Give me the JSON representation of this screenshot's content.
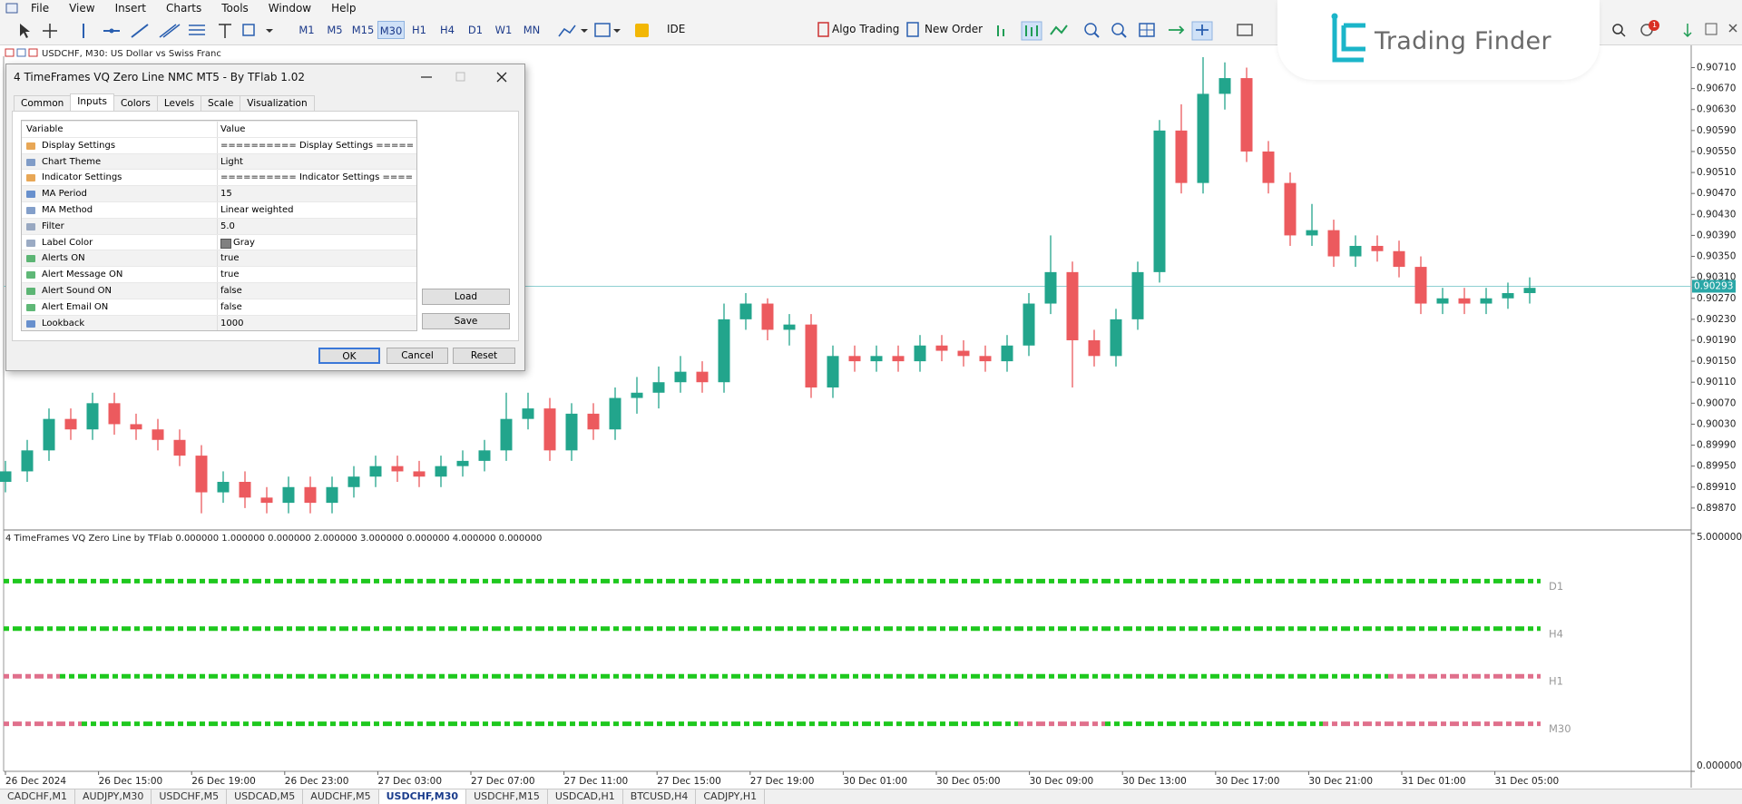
{
  "menu": [
    "File",
    "View",
    "Insert",
    "Charts",
    "Tools",
    "Window",
    "Help"
  ],
  "toolbar": {
    "timeframes": [
      "M1",
      "M5",
      "M15",
      "M30",
      "H1",
      "H4",
      "D1",
      "W1",
      "MN"
    ],
    "ide": "IDE",
    "algo": "Algo Trading",
    "order": "New Order",
    "notifications": 1
  },
  "logo": "Trading Finder",
  "dialog": {
    "title": "4 TimeFrames VQ Zero Line NMC MT5 - By TFlab 1.02",
    "tabs": [
      "Common",
      "Inputs",
      "Colors",
      "Levels",
      "Scale",
      "Visualization"
    ],
    "columns": [
      "Variable",
      "Value"
    ],
    "rows": [
      [
        "Display Settings",
        "========== Display Settings ======..."
      ],
      [
        "Chart Theme",
        "Light"
      ],
      [
        "Indicator Settings",
        "========== Indicator Settings =====..."
      ],
      [
        "MA Period",
        15
      ],
      [
        "MA Method",
        "Linear weighted"
      ],
      [
        "Filter",
        "5.0"
      ],
      [
        "Label Color",
        "Gray"
      ],
      [
        "Alerts ON",
        "true"
      ],
      [
        "Alert Message ON",
        "true"
      ],
      [
        "Alert Sound ON",
        "false"
      ],
      [
        "Alert Email ON",
        "false"
      ],
      [
        "Lookback",
        1000
      ]
    ],
    "buttons": {
      "load": "Load",
      "save": "Save",
      "ok": "OK",
      "cancel": "Cancel",
      "reset": "Reset"
    }
  },
  "chart": {
    "type": "candlestick",
    "symbol_header": "USDCHF, M30:  US Dollar vs Swiss Franc",
    "up_color": "#22a58c",
    "down_color": "#ec5a5e",
    "ylim": [
      0.8983,
      0.90723
    ],
    "yticks": [
      {
        "value": 0.9071,
        "label": "0.90710"
      },
      {
        "value": 0.9067,
        "label": "0.90670"
      },
      {
        "value": 0.9063,
        "label": "0.90630"
      },
      {
        "value": 0.9059,
        "label": "0.90590"
      },
      {
        "value": 0.9055,
        "label": "0.90550"
      },
      {
        "value": 0.9051,
        "label": "0.90510"
      },
      {
        "value": 0.9047,
        "label": "0.90470"
      },
      {
        "value": 0.9043,
        "label": "0.90430"
      },
      {
        "value": 0.9039,
        "label": "0.90390"
      },
      {
        "value": 0.9035,
        "label": "0.90350"
      },
      {
        "value": 0.9031,
        "label": "0.90310"
      },
      {
        "value": 0.9027,
        "label": "0.90270"
      },
      {
        "value": 0.9023,
        "label": "0.90230"
      },
      {
        "value": 0.9019,
        "label": "0.90190"
      },
      {
        "value": 0.9015,
        "label": "0.90150"
      },
      {
        "value": 0.9011,
        "label": "0.90110"
      },
      {
        "value": 0.9007,
        "label": "0.90070"
      },
      {
        "value": 0.9003,
        "label": "0.90030"
      },
      {
        "value": 0.8999,
        "label": "0.89990"
      },
      {
        "value": 0.8995,
        "label": "0.89950"
      },
      {
        "value": 0.8991,
        "label": "0.89910"
      },
      {
        "value": 0.8987,
        "label": "0.89870"
      }
    ],
    "last_price": 0.90293,
    "candles": [
      [
        0.8992,
        0.8996,
        0.899,
        0.8994
      ],
      [
        0.8994,
        0.9,
        0.8992,
        0.8998
      ],
      [
        0.8998,
        0.9006,
        0.8996,
        0.9004
      ],
      [
        0.9004,
        0.9006,
        0.9,
        0.9002
      ],
      [
        0.9002,
        0.9009,
        0.9,
        0.9007
      ],
      [
        0.9007,
        0.9009,
        0.9001,
        0.9003
      ],
      [
        0.9003,
        0.9005,
        0.9,
        0.9002
      ],
      [
        0.9002,
        0.9004,
        0.8998,
        0.9
      ],
      [
        0.9,
        0.9002,
        0.8995,
        0.8997
      ],
      [
        0.8997,
        0.8999,
        0.8986,
        0.899
      ],
      [
        0.899,
        0.8994,
        0.8988,
        0.8992
      ],
      [
        0.8992,
        0.8994,
        0.8987,
        0.8989
      ],
      [
        0.8989,
        0.8991,
        0.8986,
        0.8988
      ],
      [
        0.8988,
        0.8993,
        0.8986,
        0.8991
      ],
      [
        0.8991,
        0.8993,
        0.8986,
        0.8988
      ],
      [
        0.8988,
        0.8993,
        0.8986,
        0.8991
      ],
      [
        0.8991,
        0.8995,
        0.8989,
        0.8993
      ],
      [
        0.8993,
        0.8997,
        0.8991,
        0.8995
      ],
      [
        0.8995,
        0.8997,
        0.8992,
        0.8994
      ],
      [
        0.8994,
        0.8996,
        0.8991,
        0.8993
      ],
      [
        0.8993,
        0.8997,
        0.8991,
        0.8995
      ],
      [
        0.8995,
        0.8998,
        0.8993,
        0.8996
      ],
      [
        0.8996,
        0.9,
        0.8994,
        0.8998
      ],
      [
        0.8998,
        0.9009,
        0.8996,
        0.9004
      ],
      [
        0.9004,
        0.9009,
        0.9002,
        0.9006
      ],
      [
        0.9006,
        0.9008,
        0.8996,
        0.8998
      ],
      [
        0.8998,
        0.9007,
        0.8996,
        0.9005
      ],
      [
        0.9005,
        0.9007,
        0.9,
        0.9002
      ],
      [
        0.9002,
        0.901,
        0.9,
        0.9008
      ],
      [
        0.9008,
        0.9012,
        0.9005,
        0.9009
      ],
      [
        0.9009,
        0.9014,
        0.9006,
        0.9011
      ],
      [
        0.9011,
        0.9016,
        0.9009,
        0.9013
      ],
      [
        0.9013,
        0.9015,
        0.9009,
        0.9011
      ],
      [
        0.9011,
        0.9026,
        0.9009,
        0.9023
      ],
      [
        0.9023,
        0.9028,
        0.9021,
        0.9026
      ],
      [
        0.9026,
        0.9027,
        0.9019,
        0.9021
      ],
      [
        0.9021,
        0.9024,
        0.9018,
        0.9022
      ],
      [
        0.9022,
        0.9024,
        0.9008,
        0.901
      ],
      [
        0.901,
        0.9018,
        0.9008,
        0.9016
      ],
      [
        0.9016,
        0.9018,
        0.9013,
        0.9015
      ],
      [
        0.9015,
        0.9018,
        0.9013,
        0.9016
      ],
      [
        0.9016,
        0.9018,
        0.9013,
        0.9015
      ],
      [
        0.9015,
        0.902,
        0.9013,
        0.9018
      ],
      [
        0.9018,
        0.902,
        0.9015,
        0.9017
      ],
      [
        0.9017,
        0.9019,
        0.9014,
        0.9016
      ],
      [
        0.9016,
        0.9018,
        0.9013,
        0.9015
      ],
      [
        0.9015,
        0.902,
        0.9013,
        0.9018
      ],
      [
        0.9018,
        0.9028,
        0.9016,
        0.9026
      ],
      [
        0.9026,
        0.9039,
        0.9024,
        0.9032
      ],
      [
        0.9032,
        0.9034,
        0.901,
        0.9019
      ],
      [
        0.9019,
        0.9021,
        0.9014,
        0.9016
      ],
      [
        0.9016,
        0.9025,
        0.9014,
        0.9023
      ],
      [
        0.9023,
        0.9034,
        0.9021,
        0.9032
      ],
      [
        0.9032,
        0.9061,
        0.903,
        0.9059
      ],
      [
        0.9059,
        0.9064,
        0.9047,
        0.9049
      ],
      [
        0.9049,
        0.9073,
        0.9047,
        0.9066
      ],
      [
        0.9066,
        0.9072,
        0.9063,
        0.9069
      ],
      [
        0.9069,
        0.9071,
        0.9053,
        0.9055
      ],
      [
        0.9055,
        0.9057,
        0.9047,
        0.9049
      ],
      [
        0.9049,
        0.9051,
        0.9037,
        0.9039
      ],
      [
        0.9039,
        0.9045,
        0.9037,
        0.904
      ],
      [
        0.904,
        0.9042,
        0.9033,
        0.9035
      ],
      [
        0.9035,
        0.9039,
        0.9033,
        0.9037
      ],
      [
        0.9037,
        0.9039,
        0.9034,
        0.9036
      ],
      [
        0.9036,
        0.9038,
        0.9031,
        0.9033
      ],
      [
        0.9033,
        0.9035,
        0.9024,
        0.9026
      ],
      [
        0.9026,
        0.9029,
        0.9024,
        0.9027
      ],
      [
        0.9027,
        0.9029,
        0.9024,
        0.9026
      ],
      [
        0.9026,
        0.9029,
        0.9024,
        0.9027
      ],
      [
        0.9027,
        0.903,
        0.9025,
        0.9028
      ],
      [
        0.9028,
        0.9031,
        0.9026,
        0.9029
      ]
    ],
    "time_labels": [
      "26 Dec 2024",
      "26 Dec 15:00",
      "26 Dec 19:00",
      "26 Dec 23:00",
      "27 Dec 03:00",
      "27 Dec 07:00",
      "27 Dec 11:00",
      "27 Dec 15:00",
      "27 Dec 19:00",
      "30 Dec 01:00",
      "30 Dec 05:00",
      "30 Dec 09:00",
      "30 Dec 13:00",
      "30 Dec 17:00",
      "30 Dec 21:00",
      "31 Dec 01:00",
      "31 Dec 05:00"
    ]
  },
  "indicator": {
    "header": "4 TimeFrames VQ Zero Line by TFlab 0.000000 1.000000 0.000000 2.000000 3.000000 0.000000 4.000000 0.000000",
    "ylim": [
      0,
      5
    ],
    "yticks": [
      {
        "value": 5,
        "label": "5.000000"
      },
      {
        "value": 0,
        "label": "0.000000"
      }
    ],
    "bull_color": "#1ec81e",
    "bear_color": "#e0708c",
    "rows": [
      {
        "label": "D1",
        "level": 4,
        "signals": [
          1,
          1,
          1,
          1,
          1,
          1,
          1,
          1,
          1,
          1,
          1,
          1,
          1,
          1,
          1,
          1,
          1,
          1,
          1,
          1,
          1,
          1,
          1,
          1,
          1,
          1,
          1,
          1,
          1,
          1,
          1,
          1,
          1,
          1,
          1,
          1,
          1,
          1,
          1,
          1,
          1,
          1,
          1,
          1,
          1,
          1,
          1,
          1,
          1,
          1,
          1,
          1,
          1,
          1,
          1,
          1,
          1,
          1,
          1,
          1,
          1,
          1,
          1,
          1,
          1,
          1,
          1,
          1,
          1,
          1,
          1
        ]
      },
      {
        "label": "H4",
        "level": 3,
        "signals": [
          1,
          1,
          1,
          1,
          1,
          1,
          1,
          1,
          1,
          1,
          1,
          1,
          1,
          1,
          1,
          1,
          1,
          1,
          1,
          1,
          1,
          1,
          1,
          1,
          1,
          1,
          1,
          1,
          1,
          1,
          1,
          1,
          1,
          1,
          1,
          1,
          1,
          1,
          1,
          1,
          1,
          1,
          1,
          1,
          1,
          1,
          1,
          1,
          1,
          1,
          1,
          1,
          1,
          1,
          1,
          1,
          1,
          1,
          1,
          1,
          1,
          1,
          1,
          1,
          1,
          1,
          1,
          1,
          1,
          1,
          1
        ]
      },
      {
        "label": "H1",
        "level": 2,
        "signals": [
          -1,
          -1,
          -1,
          1,
          1,
          1,
          1,
          1,
          1,
          1,
          1,
          1,
          1,
          1,
          1,
          1,
          1,
          1,
          1,
          1,
          1,
          1,
          1,
          1,
          1,
          1,
          1,
          1,
          1,
          1,
          1,
          1,
          1,
          1,
          1,
          1,
          1,
          1,
          1,
          1,
          1,
          1,
          1,
          1,
          1,
          1,
          1,
          1,
          1,
          1,
          1,
          1,
          1,
          1,
          1,
          1,
          1,
          1,
          1,
          1,
          1,
          1,
          1,
          1,
          -1,
          -1,
          -1,
          -1,
          -1,
          -1,
          -1
        ]
      },
      {
        "label": "M30",
        "level": 1,
        "signals": [
          -1,
          -1,
          -1,
          -1,
          1,
          1,
          1,
          1,
          1,
          1,
          1,
          1,
          1,
          1,
          1,
          1,
          1,
          1,
          1,
          1,
          1,
          1,
          1,
          1,
          1,
          1,
          1,
          1,
          1,
          1,
          1,
          1,
          1,
          1,
          1,
          1,
          1,
          1,
          1,
          1,
          1,
          1,
          1,
          1,
          1,
          1,
          1,
          -1,
          -1,
          -1,
          -1,
          1,
          1,
          1,
          1,
          1,
          1,
          1,
          1,
          1,
          1,
          -1,
          -1,
          -1,
          -1,
          -1,
          -1,
          -1,
          -1,
          -1,
          -1
        ]
      }
    ]
  },
  "tabs": [
    "CADCHF,M1",
    "AUDJPY,M30",
    "USDCHF,M5",
    "USDCAD,M5",
    "AUDCHF,M5",
    "USDCHF,M30",
    "USDCHF,M15",
    "USDCAD,H1",
    "BTCUSD,H4",
    "CADJPY,H1"
  ]
}
